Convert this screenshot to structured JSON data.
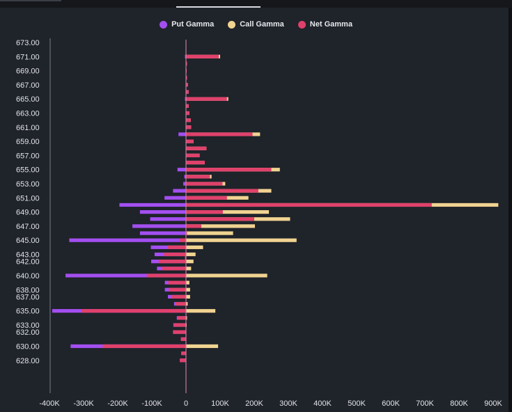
{
  "colors": {
    "put": "#a34ff0",
    "call": "#f0d391",
    "net": "#e0416c",
    "zero_line": "#c97aa3",
    "axis": "#7a7f88"
  },
  "legend": [
    {
      "name": "Put Gamma",
      "color": "#a34ff0"
    },
    {
      "name": "Call Gamma",
      "color": "#f0d391"
    },
    {
      "name": "Net Gamma",
      "color": "#e0416c"
    }
  ],
  "chart_data": {
    "type": "bar",
    "orientation": "horizontal",
    "xlim": [
      -430000,
      920000
    ],
    "x_ticks": [
      -400000,
      -300000,
      -200000,
      -100000,
      0,
      100000,
      200000,
      300000,
      400000,
      500000,
      600000,
      700000,
      800000,
      900000
    ],
    "x_tick_labels": [
      "-400K",
      "-300K",
      "-200K",
      "-100K",
      "0",
      "100K",
      "200K",
      "300K",
      "400K",
      "500K",
      "600K",
      "700K",
      "800K",
      "900K"
    ],
    "y_tick_labels": [
      "673.00",
      "671.00",
      "669.00",
      "667.00",
      "665.00",
      "663.00",
      "661.00",
      "659.00",
      "657.00",
      "655.00",
      "653.00",
      "651.00",
      "649.00",
      "647.00",
      "645.00",
      "643.00",
      "642.00",
      "640.00",
      "638.00",
      "637.00",
      "635.00",
      "633.00",
      "632.00",
      "630.00",
      "628.00"
    ],
    "strikes": [
      {
        "y": 671.0,
        "put": -3000,
        "call": 100000,
        "net": 96000
      },
      {
        "y": 670.0,
        "put": 0,
        "call": 3000,
        "net": 3000
      },
      {
        "y": 669.0,
        "put": 0,
        "call": 2000,
        "net": 2000
      },
      {
        "y": 668.0,
        "put": 0,
        "call": 3000,
        "net": 3000
      },
      {
        "y": 667.0,
        "put": 0,
        "call": 6000,
        "net": 6000
      },
      {
        "y": 666.0,
        "put": 0,
        "call": 8000,
        "net": 8000
      },
      {
        "y": 665.0,
        "put": -3000,
        "call": 124000,
        "net": 120000
      },
      {
        "y": 664.0,
        "put": 0,
        "call": 8000,
        "net": 8000
      },
      {
        "y": 663.0,
        "put": 0,
        "call": 10000,
        "net": 10000
      },
      {
        "y": 662.0,
        "put": 0,
        "call": 14000,
        "net": 14000
      },
      {
        "y": 661.0,
        "put": 0,
        "call": 15000,
        "net": 15000
      },
      {
        "y": 660.0,
        "put": -22000,
        "call": 217000,
        "net": 195000
      },
      {
        "y": 659.0,
        "put": 0,
        "call": 22000,
        "net": 22000
      },
      {
        "y": 658.0,
        "put": 0,
        "call": 60000,
        "net": 60000
      },
      {
        "y": 657.0,
        "put": 0,
        "call": 40000,
        "net": 40000
      },
      {
        "y": 656.0,
        "put": 0,
        "call": 55000,
        "net": 55000
      },
      {
        "y": 655.0,
        "put": -25000,
        "call": 275000,
        "net": 250000
      },
      {
        "y": 654.0,
        "put": -5000,
        "call": 75000,
        "net": 70000
      },
      {
        "y": 653.0,
        "put": -8000,
        "call": 115000,
        "net": 107000
      },
      {
        "y": 652.0,
        "put": -38000,
        "call": 250000,
        "net": 212000
      },
      {
        "y": 651.0,
        "put": -63000,
        "call": 183000,
        "net": 120000
      },
      {
        "y": 650.0,
        "put": -195000,
        "call": 915000,
        "net": 720000
      },
      {
        "y": 649.0,
        "put": -135000,
        "call": 243000,
        "net": 108000
      },
      {
        "y": 648.0,
        "put": -105000,
        "call": 305000,
        "net": 200000
      },
      {
        "y": 647.0,
        "put": -157000,
        "call": 202000,
        "net": 45000
      },
      {
        "y": 646.0,
        "put": -135000,
        "call": 138000,
        "net": 3000
      },
      {
        "y": 645.0,
        "put": -342000,
        "call": 324000,
        "net": -18000
      },
      {
        "y": 644.0,
        "put": -103000,
        "call": 50000,
        "net": -53000
      },
      {
        "y": 643.0,
        "put": -92000,
        "call": 28000,
        "net": -64000
      },
      {
        "y": 642.5,
        "put": -3000,
        "call": 0,
        "net": -3000
      },
      {
        "y": 642.0,
        "put": -102000,
        "call": 22000,
        "net": -80000
      },
      {
        "y": 641.0,
        "put": -85000,
        "call": 15000,
        "net": -70000
      },
      {
        "y": 640.0,
        "put": -353000,
        "call": 238000,
        "net": -115000
      },
      {
        "y": 639.0,
        "put": -62000,
        "call": 10000,
        "net": -52000
      },
      {
        "y": 638.0,
        "put": -62000,
        "call": 12000,
        "net": -50000
      },
      {
        "y": 637.0,
        "put": -53000,
        "call": 12000,
        "net": -41000
      },
      {
        "y": 636.0,
        "put": -35000,
        "call": 5000,
        "net": -30000
      },
      {
        "y": 635.0,
        "put": -392000,
        "call": 86000,
        "net": -306000
      },
      {
        "y": 634.0,
        "put": -27000,
        "call": 3000,
        "net": -24000
      },
      {
        "y": 633.0,
        "put": -37000,
        "call": 2000,
        "net": -35000
      },
      {
        "y": 632.0,
        "put": -38000,
        "call": 0,
        "net": -38000
      },
      {
        "y": 631.0,
        "put": -15000,
        "call": 0,
        "net": -15000
      },
      {
        "y": 630.0,
        "put": -338000,
        "call": 94000,
        "net": -244000
      },
      {
        "y": 629.0,
        "put": -14000,
        "call": 0,
        "net": -14000
      },
      {
        "y": 628.0,
        "put": -18000,
        "call": 0,
        "net": -18000
      }
    ]
  }
}
